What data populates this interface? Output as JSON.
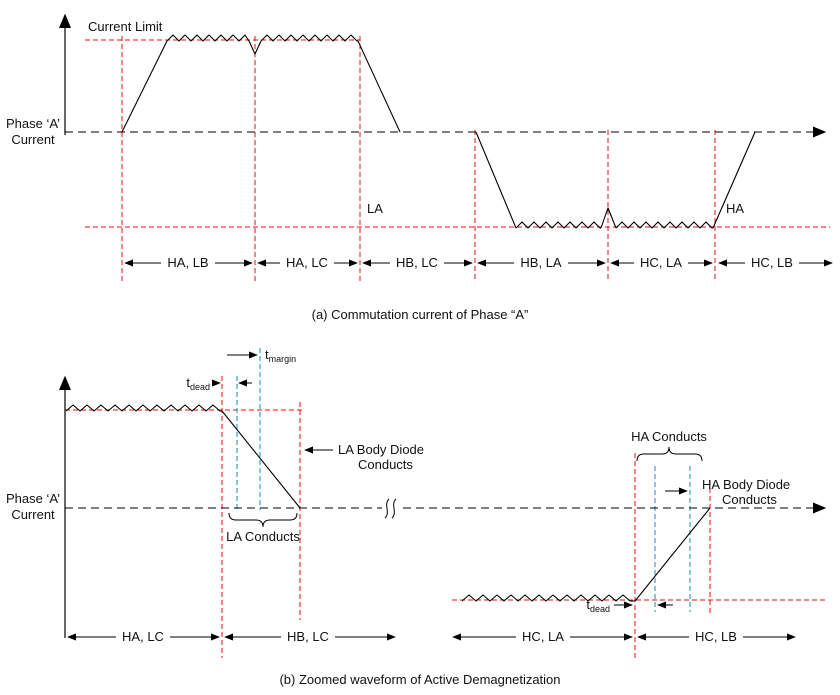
{
  "colors": {
    "waveform": "#000000",
    "guide_red": "#e01010",
    "guide_blue": "#39a0ca"
  },
  "diagram_a": {
    "caption": "(a) Commutation current of Phase “A”",
    "phase_line1": "Phase ‘A’",
    "phase_line2": "Current",
    "current_limit": "Current Limit",
    "label_la": "LA",
    "label_ha": "HA",
    "intervals": [
      "HA, LB",
      "HA, LC",
      "HB, LC",
      "HB, LA",
      "HC, LA",
      "HC, LB"
    ]
  },
  "diagram_b": {
    "caption": "(b) Zoomed waveform of Active Demagnetization",
    "phase_line1": "Phase ‘A’",
    "phase_line2": "Current",
    "t_dead_base": "t",
    "t_dead_sub": "dead",
    "t_margin_base": "t",
    "t_margin_sub": "margin",
    "la_conducts": "LA Conducts",
    "la_body_diode_line1": "LA Body Diode",
    "la_body_diode_line2": "Conducts",
    "ha_conducts": "HA Conducts",
    "ha_body_diode_line1": "HA Body Diode",
    "ha_body_diode_line2": "Conducts",
    "intervals": [
      "HA, LC",
      "HB, LC",
      "HC, LA",
      "HC, LB"
    ]
  }
}
